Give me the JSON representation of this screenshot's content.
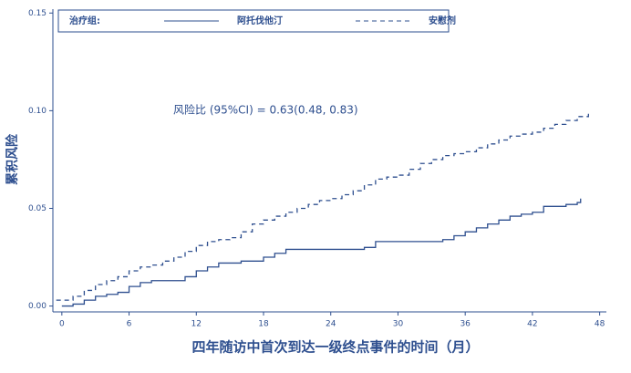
{
  "chart_data": {
    "type": "line",
    "step": true,
    "ylabel": "累积风险",
    "xlabel": "四年随访中首次到达一级终点事件的时间（月）",
    "legend_title": "治疗组:",
    "legend": "top",
    "annotation": "风险比 (95%CI) = 0.63(0.48, 0.83)",
    "xlim": [
      -0.8,
      48.6
    ],
    "xticks": [
      0,
      6,
      12,
      18,
      24,
      30,
      36,
      42,
      48
    ],
    "ylim": [
      -0.003,
      0.152
    ],
    "yticks": [
      {
        "value": 0,
        "label": "0.00"
      },
      {
        "value": 0.05,
        "label": "0.05"
      },
      {
        "value": 0.1,
        "label": "0.10"
      },
      {
        "value": 0.15,
        "label": "0.15"
      }
    ],
    "series": [
      {
        "name": "阿托伐他汀",
        "color": "#2e4f8f",
        "dash": false,
        "x": [
          0,
          1,
          2,
          3,
          4,
          5,
          6,
          7,
          8,
          10,
          11,
          12,
          13,
          14,
          16,
          18,
          19,
          20,
          27,
          28,
          34,
          35,
          36,
          37,
          38,
          39,
          40,
          41,
          42,
          43,
          45,
          46,
          46.3
        ],
        "values": [
          0,
          0.001,
          0.003,
          0.005,
          0.006,
          0.007,
          0.01,
          0.012,
          0.013,
          0.013,
          0.015,
          0.018,
          0.02,
          0.022,
          0.023,
          0.025,
          0.027,
          0.029,
          0.03,
          0.033,
          0.034,
          0.036,
          0.038,
          0.04,
          0.042,
          0.044,
          0.046,
          0.047,
          0.048,
          0.051,
          0.052,
          0.053,
          0.055
        ]
      },
      {
        "name": "安慰剂",
        "color": "#2e4f8f",
        "dash": true,
        "x": [
          -0.5,
          1,
          2,
          3,
          4,
          5,
          6,
          7,
          8,
          9,
          10,
          11,
          12,
          13,
          14,
          15,
          16,
          17,
          18,
          19,
          20,
          21,
          22,
          23,
          24,
          25,
          26,
          27,
          28,
          29,
          30,
          31,
          32,
          33,
          34,
          35,
          36,
          37,
          38,
          39,
          40,
          41,
          42,
          43,
          44,
          45,
          46,
          47
        ],
        "values": [
          0.003,
          0.005,
          0.008,
          0.011,
          0.013,
          0.015,
          0.018,
          0.02,
          0.021,
          0.023,
          0.025,
          0.028,
          0.031,
          0.033,
          0.034,
          0.035,
          0.038,
          0.042,
          0.044,
          0.046,
          0.048,
          0.05,
          0.052,
          0.054,
          0.055,
          0.057,
          0.059,
          0.062,
          0.065,
          0.066,
          0.067,
          0.07,
          0.073,
          0.075,
          0.077,
          0.078,
          0.079,
          0.081,
          0.083,
          0.085,
          0.087,
          0.088,
          0.089,
          0.091,
          0.093,
          0.095,
          0.097,
          0.1
        ]
      }
    ]
  }
}
